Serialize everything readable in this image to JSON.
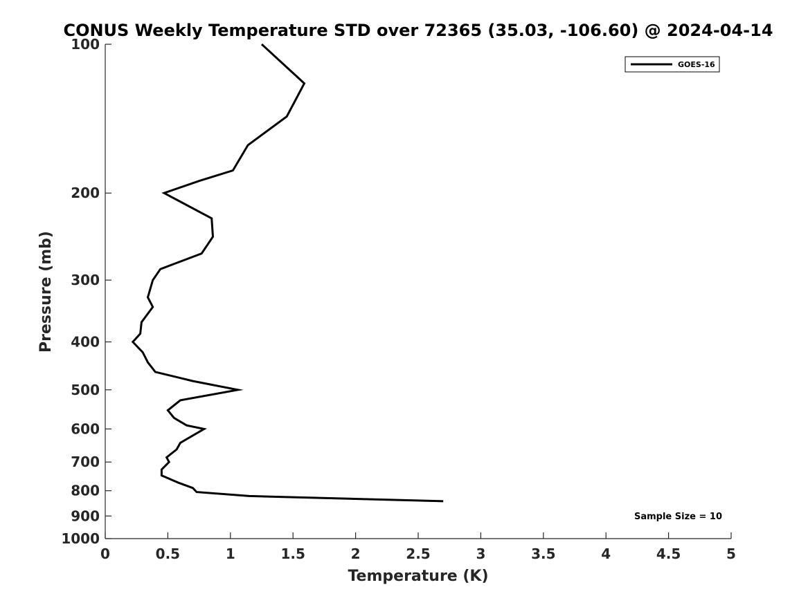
{
  "chart_data": {
    "type": "line",
    "title": "CONUS Weekly Temperature STD over 72365 (35.03, -106.60) @ 2024-04-14",
    "xlabel": "Temperature (K)",
    "ylabel": "Pressure (mb)",
    "xlim": [
      0,
      5
    ],
    "ylim": [
      100,
      1000
    ],
    "y_scale": "log",
    "y_reversed": true,
    "x_ticks": [
      "0",
      "0.5",
      "1",
      "1.5",
      "2",
      "2.5",
      "3",
      "3.5",
      "4",
      "4.5",
      "5"
    ],
    "y_ticks": [
      "100",
      "200",
      "300",
      "400",
      "500",
      "600",
      "700",
      "800",
      "900",
      "1000"
    ],
    "grid": false,
    "legend": {
      "position": "top-right",
      "entries": [
        "GOES-16"
      ]
    },
    "annotations": [
      {
        "text": "Sample Size = 10",
        "position": "bottom-right"
      }
    ],
    "series": [
      {
        "name": "GOES-16",
        "color": "#000000",
        "points": [
          {
            "x": 1.25,
            "y": 100
          },
          {
            "x": 1.59,
            "y": 120
          },
          {
            "x": 1.45,
            "y": 140
          },
          {
            "x": 1.14,
            "y": 160
          },
          {
            "x": 1.02,
            "y": 180
          },
          {
            "x": 0.75,
            "y": 189
          },
          {
            "x": 0.47,
            "y": 200
          },
          {
            "x": 0.85,
            "y": 225
          },
          {
            "x": 0.86,
            "y": 245
          },
          {
            "x": 0.77,
            "y": 265
          },
          {
            "x": 0.44,
            "y": 285
          },
          {
            "x": 0.38,
            "y": 300
          },
          {
            "x": 0.34,
            "y": 325
          },
          {
            "x": 0.38,
            "y": 340
          },
          {
            "x": 0.29,
            "y": 365
          },
          {
            "x": 0.28,
            "y": 385
          },
          {
            "x": 0.22,
            "y": 400
          },
          {
            "x": 0.3,
            "y": 420
          },
          {
            "x": 0.34,
            "y": 440
          },
          {
            "x": 0.4,
            "y": 460
          },
          {
            "x": 0.7,
            "y": 480
          },
          {
            "x": 1.06,
            "y": 500
          },
          {
            "x": 0.6,
            "y": 525
          },
          {
            "x": 0.5,
            "y": 550
          },
          {
            "x": 0.55,
            "y": 570
          },
          {
            "x": 0.65,
            "y": 590
          },
          {
            "x": 0.79,
            "y": 600
          },
          {
            "x": 0.6,
            "y": 640
          },
          {
            "x": 0.57,
            "y": 660
          },
          {
            "x": 0.49,
            "y": 685
          },
          {
            "x": 0.51,
            "y": 700
          },
          {
            "x": 0.45,
            "y": 725
          },
          {
            "x": 0.45,
            "y": 745
          },
          {
            "x": 0.58,
            "y": 770
          },
          {
            "x": 0.7,
            "y": 790
          },
          {
            "x": 0.73,
            "y": 805
          },
          {
            "x": 1.15,
            "y": 820
          },
          {
            "x": 2.7,
            "y": 840
          }
        ]
      }
    ]
  }
}
